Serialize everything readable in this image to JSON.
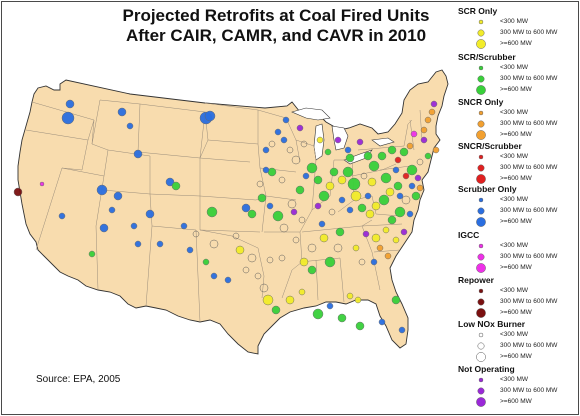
{
  "title_line1": "Projected Retrofits at Coal Fired Units",
  "title_line2": "After CAIR, CAMR, and CAVR in 2010",
  "source": "Source: EPA, 2005",
  "colors": {
    "land": "#f8dcae",
    "state_border": "#9a8c7a",
    "outline": "#333333"
  },
  "legend": [
    {
      "name": "SCR Only",
      "color": "#f2ec2a",
      "items": [
        "<300 MW",
        "300 MW to 600 MW",
        ">=600 MW"
      ]
    },
    {
      "name": "SCR/Scrubber",
      "color": "#38d03a",
      "items": [
        "<300 MW",
        "300 MW to 600 MW",
        ">=600 MW"
      ]
    },
    {
      "name": "SNCR Only",
      "color": "#f2a030",
      "items": [
        "<300 MW",
        "300 MW to 600 MW",
        ">=600 MW"
      ]
    },
    {
      "name": "SNCR/Scrubber",
      "color": "#e02020",
      "items": [
        "<300 MW",
        "300 MW to 600 MW",
        ">=600 MW"
      ]
    },
    {
      "name": "Scrubber Only",
      "color": "#2a6ee0",
      "items": [
        "<300 MW",
        "300 MW to 600 MW",
        ">=600 MW"
      ]
    },
    {
      "name": "IGCC",
      "color": "#ee30e8",
      "items": [
        "<300 MW",
        "300 MW to 600 MW",
        ">=600 MW"
      ]
    },
    {
      "name": "Repower",
      "color": "#7a1010",
      "items": [
        "<300 MW",
        "300 MW to 600 MW",
        ">=600 MW"
      ]
    },
    {
      "name": "Low NOx Burner",
      "color": "none",
      "items": [
        "<300 MW",
        "300 MW to 600 MW",
        ">=600 MW"
      ]
    },
    {
      "name": "Not Operating",
      "color": "#9a28d8",
      "items": [
        "<300 MW",
        "300 MW to 600 MW",
        ">=600 MW"
      ]
    }
  ]
}
